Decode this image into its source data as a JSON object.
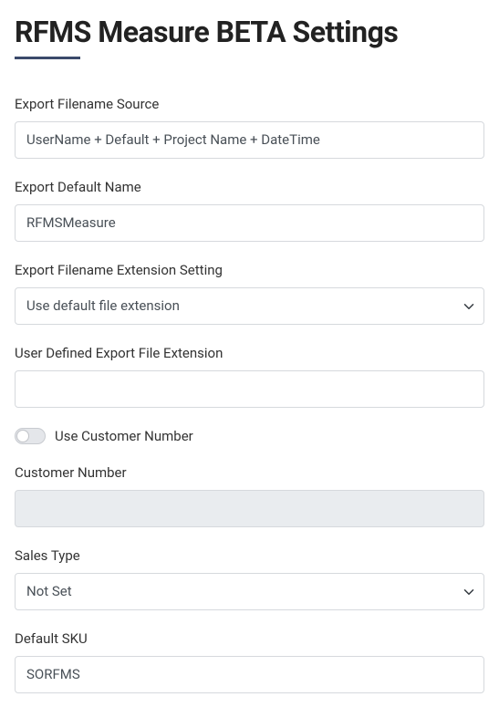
{
  "page": {
    "title": "RFMS Measure BETA Settings"
  },
  "fields": {
    "export_filename_source": {
      "label": "Export Filename Source",
      "value": "UserName + Default + Project Name + DateTime"
    },
    "export_default_name": {
      "label": "Export Default Name",
      "value": "RFMSMeasure"
    },
    "export_filename_ext_setting": {
      "label": "Export Filename Extension Setting",
      "selected": "Use default file extension"
    },
    "user_defined_ext": {
      "label": "User Defined Export File Extension",
      "value": ""
    },
    "use_customer_number": {
      "label": "Use Customer Number",
      "checked": false
    },
    "customer_number": {
      "label": "Customer Number",
      "value": "",
      "disabled": true
    },
    "sales_type": {
      "label": "Sales Type",
      "selected": "Not Set"
    },
    "default_sku": {
      "label": "Default SKU",
      "value": "SORFMS"
    }
  }
}
